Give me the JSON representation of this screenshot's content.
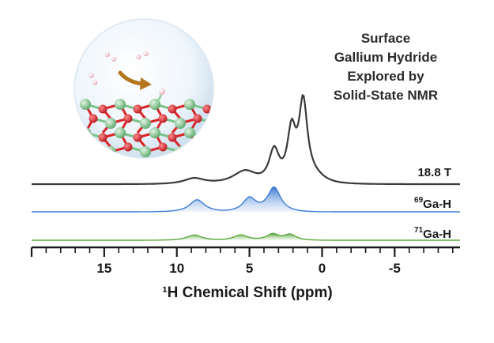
{
  "title_lines": [
    "Surface",
    "Gallium Hydride",
    "Explored by",
    "Solid-State NMR"
  ],
  "chart_data": {
    "type": "line",
    "xlabel": "¹H Chemical Shift (ppm)",
    "x_reversed": true,
    "xlim": [
      20,
      -9.5
    ],
    "x_ticks": [
      15,
      10,
      5,
      0,
      -5
    ],
    "x_tick_labels": [
      "15",
      "10",
      "5",
      "0",
      "-5"
    ],
    "grid": false,
    "series": [
      {
        "name": "18.8 T",
        "color": "#3a3a3a",
        "fill": "none",
        "peaks": [
          {
            "ppm": 8.8,
            "height": 0.06,
            "width": 1.1
          },
          {
            "ppm": 5.3,
            "height": 0.14,
            "width": 1.3
          },
          {
            "ppm": 3.3,
            "height": 0.34,
            "width": 0.55
          },
          {
            "ppm": 2.1,
            "height": 0.52,
            "width": 0.45
          },
          {
            "ppm": 1.3,
            "height": 0.8,
            "width": 0.45
          },
          {
            "ppm": 0.6,
            "height": 0.1,
            "width": 1.3
          }
        ]
      },
      {
        "name": "69Ga-H",
        "label_sup": "69",
        "label_base": "Ga-H",
        "color": "#3a7bd5",
        "fill": "blue-gradient",
        "peaks": [
          {
            "ppm": 8.6,
            "height": 0.4,
            "width": 0.8
          },
          {
            "ppm": 5.0,
            "height": 0.45,
            "width": 0.7
          },
          {
            "ppm": 3.3,
            "height": 0.8,
            "width": 0.7
          }
        ]
      },
      {
        "name": "71Ga-H",
        "label_sup": "71",
        "label_base": "Ga-H",
        "color": "#5aa83a",
        "fill": "green-gradient",
        "peaks": [
          {
            "ppm": 8.8,
            "height": 0.3,
            "width": 0.8
          },
          {
            "ppm": 5.6,
            "height": 0.3,
            "width": 0.75
          },
          {
            "ppm": 3.4,
            "height": 0.35,
            "width": 0.65
          },
          {
            "ppm": 2.2,
            "height": 0.32,
            "width": 0.65
          }
        ]
      }
    ]
  },
  "illustration": {
    "description_icon": "surface-hydride-sphere-icon",
    "arrow_color": "#b5771e",
    "atom_colors": {
      "gallium": "#7cc38a",
      "oxygen": "#d8262a",
      "hydrogen": "#f2c8cf"
    }
  }
}
